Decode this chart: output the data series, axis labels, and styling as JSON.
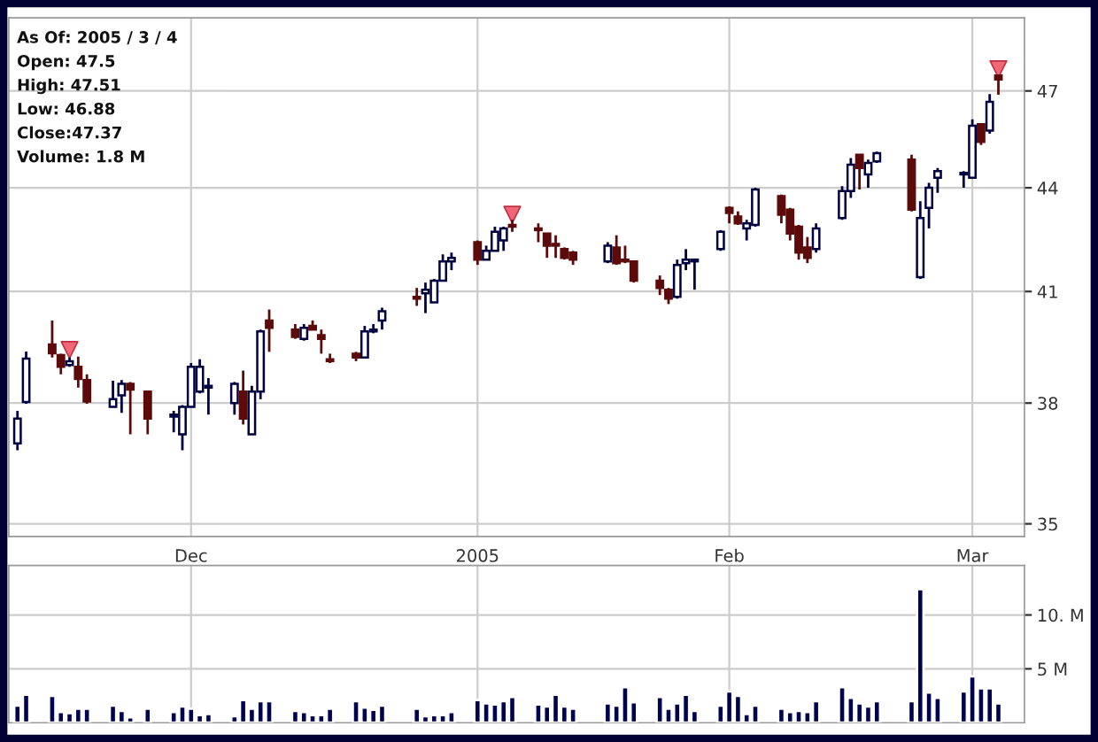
{
  "chart_data": [
    {
      "type": "candlestick",
      "annotations": [
        "As Of: 2005 / 3 / 4",
        "Open: 47.5",
        "High: 47.51",
        "Low: 46.88",
        "Close:47.37",
        "Volume: 1.8 M"
      ],
      "x": [
        "2004-11-11",
        "2004-11-12",
        "2004-11-15",
        "2004-11-16",
        "2004-11-17",
        "2004-11-18",
        "2004-11-19",
        "2004-11-22",
        "2004-11-23",
        "2004-11-24",
        "2004-11-26",
        "2004-11-29",
        "2004-11-30",
        "2004-12-01",
        "2004-12-02",
        "2004-12-03",
        "2004-12-06",
        "2004-12-07",
        "2004-12-08",
        "2004-12-09",
        "2004-12-10",
        "2004-12-13",
        "2004-12-14",
        "2004-12-15",
        "2004-12-16",
        "2004-12-17",
        "2004-12-20",
        "2004-12-21",
        "2004-12-22",
        "2004-12-23",
        "2004-12-27",
        "2004-12-28",
        "2004-12-29",
        "2004-12-30",
        "2004-12-31",
        "2005-01-03",
        "2005-01-04",
        "2005-01-05",
        "2005-01-06",
        "2005-01-07",
        "2005-01-10",
        "2005-01-11",
        "2005-01-12",
        "2005-01-13",
        "2005-01-14",
        "2005-01-18",
        "2005-01-19",
        "2005-01-20",
        "2005-01-21",
        "2005-01-24",
        "2005-01-25",
        "2005-01-26",
        "2005-01-27",
        "2005-01-28",
        "2005-01-31",
        "2005-02-01",
        "2005-02-02",
        "2005-02-03",
        "2005-02-04",
        "2005-02-07",
        "2005-02-08",
        "2005-02-09",
        "2005-02-10",
        "2005-02-11",
        "2005-02-14",
        "2005-02-15",
        "2005-02-16",
        "2005-02-17",
        "2005-02-18",
        "2005-02-22",
        "2005-02-23",
        "2005-02-24",
        "2005-02-25",
        "2005-02-28",
        "2005-03-01",
        "2005-03-02",
        "2005-03-03",
        "2005-03-04"
      ],
      "ohlc": [
        [
          36.97,
          37.8,
          36.8,
          37.6
        ],
        [
          38.03,
          39.36,
          37.98,
          39.17
        ],
        [
          39.55,
          40.2,
          39.2,
          39.31
        ],
        [
          39.26,
          39.3,
          38.75,
          38.95
        ],
        [
          39.0,
          39.2,
          38.95,
          39.1
        ],
        [
          38.95,
          39.22,
          38.4,
          38.63
        ],
        [
          38.6,
          38.75,
          37.98,
          38.04
        ],
        [
          37.9,
          38.58,
          37.9,
          38.1
        ],
        [
          38.2,
          38.6,
          37.75,
          38.5
        ],
        [
          38.5,
          38.55,
          37.2,
          38.35
        ],
        [
          38.3,
          38.3,
          37.2,
          37.6
        ],
        [
          37.65,
          37.8,
          37.25,
          37.7
        ],
        [
          37.2,
          37.95,
          36.8,
          37.9
        ],
        [
          37.9,
          39.05,
          37.9,
          38.95
        ],
        [
          38.3,
          39.15,
          38.25,
          38.95
        ],
        [
          38.4,
          38.65,
          37.7,
          38.45
        ],
        [
          38.0,
          38.55,
          37.7,
          38.5
        ],
        [
          38.3,
          38.85,
          37.45,
          37.6
        ],
        [
          37.2,
          38.45,
          37.2,
          38.3
        ],
        [
          38.3,
          39.95,
          38.1,
          39.9
        ],
        [
          40.2,
          40.5,
          39.35,
          40.0
        ],
        [
          39.95,
          40.1,
          39.7,
          39.75
        ],
        [
          39.7,
          40.1,
          39.65,
          40.0
        ],
        [
          40.05,
          40.2,
          39.95,
          39.95
        ],
        [
          39.8,
          39.95,
          39.3,
          39.7
        ],
        [
          39.15,
          39.3,
          39.05,
          39.1
        ],
        [
          39.3,
          39.35,
          39.1,
          39.2
        ],
        [
          39.2,
          40.05,
          39.2,
          39.9
        ],
        [
          39.9,
          40.1,
          39.85,
          39.95
        ],
        [
          40.2,
          40.55,
          39.95,
          40.45
        ],
        [
          40.85,
          41.1,
          40.6,
          40.8
        ],
        [
          40.95,
          41.25,
          40.4,
          41.05
        ],
        [
          40.7,
          41.35,
          40.7,
          41.3
        ],
        [
          41.3,
          42.05,
          41.3,
          41.85
        ],
        [
          41.85,
          42.1,
          41.6,
          41.95
        ],
        [
          42.4,
          42.45,
          41.75,
          41.9
        ],
        [
          41.9,
          42.3,
          41.9,
          42.15
        ],
        [
          42.15,
          42.85,
          42.15,
          42.7
        ],
        [
          42.45,
          42.85,
          42.15,
          42.8
        ],
        [
          42.9,
          43.05,
          42.7,
          42.85
        ],
        [
          42.8,
          42.95,
          42.4,
          42.75
        ],
        [
          42.65,
          42.65,
          41.95,
          42.3
        ],
        [
          42.35,
          42.6,
          41.95,
          42.3
        ],
        [
          42.2,
          42.25,
          41.9,
          41.95
        ],
        [
          42.1,
          42.15,
          41.75,
          41.9
        ],
        [
          41.85,
          42.4,
          41.8,
          42.3
        ],
        [
          42.25,
          42.6,
          41.75,
          41.8
        ],
        [
          41.9,
          42.3,
          41.8,
          41.85
        ],
        [
          41.85,
          41.85,
          41.25,
          41.3
        ],
        [
          41.3,
          41.45,
          40.9,
          41.1
        ],
        [
          41.05,
          41.1,
          40.65,
          40.8
        ],
        [
          40.85,
          41.9,
          40.8,
          41.75
        ],
        [
          41.8,
          42.2,
          41.6,
          41.9
        ],
        [
          41.85,
          41.9,
          41.05,
          41.9
        ],
        [
          42.2,
          42.75,
          42.15,
          42.7
        ],
        [
          43.4,
          43.45,
          42.95,
          43.25
        ],
        [
          43.15,
          43.3,
          42.9,
          42.95
        ],
        [
          42.8,
          43.05,
          42.45,
          42.95
        ],
        [
          42.9,
          44.0,
          42.85,
          43.95
        ],
        [
          43.75,
          43.8,
          42.95,
          43.2
        ],
        [
          43.35,
          43.4,
          42.45,
          42.65
        ],
        [
          42.85,
          42.9,
          41.9,
          42.1
        ],
        [
          42.25,
          42.55,
          41.8,
          41.95
        ],
        [
          42.2,
          42.95,
          42.1,
          42.8
        ],
        [
          43.1,
          44.05,
          43.05,
          43.9
        ],
        [
          43.9,
          44.9,
          43.7,
          44.7
        ],
        [
          45.0,
          45.0,
          43.95,
          44.6
        ],
        [
          44.4,
          44.85,
          44.0,
          44.75
        ],
        [
          44.8,
          45.1,
          44.75,
          45.05
        ],
        [
          44.85,
          45.0,
          43.3,
          43.35
        ],
        [
          41.4,
          43.6,
          41.35,
          43.1
        ],
        [
          43.4,
          44.15,
          42.8,
          44.0
        ],
        [
          44.3,
          44.6,
          43.85,
          44.5
        ],
        [
          44.4,
          44.5,
          44.0,
          44.45
        ],
        [
          44.3,
          46.1,
          44.3,
          45.9
        ],
        [
          45.95,
          45.95,
          45.3,
          45.4
        ],
        [
          45.75,
          46.9,
          45.65,
          46.65
        ],
        [
          47.5,
          47.51,
          46.88,
          47.37
        ]
      ],
      "colors": [
        "#000040",
        "#000040",
        "#5c0a0a",
        "#5c0a0a",
        "#000040",
        "#5c0a0a",
        "#5c0a0a",
        "#000040",
        "#000040",
        "#5c0a0a",
        "#5c0a0a",
        "#000040",
        "#000040",
        "#000040",
        "#000040",
        "#000040",
        "#000040",
        "#5c0a0a",
        "#000040",
        "#000040",
        "#5c0a0a",
        "#5c0a0a",
        "#000040",
        "#5c0a0a",
        "#5c0a0a",
        "#5c0a0a",
        "#5c0a0a",
        "#000040",
        "#000040",
        "#000040",
        "#5c0a0a",
        "#000040",
        "#000040",
        "#000040",
        "#000040",
        "#5c0a0a",
        "#000040",
        "#000040",
        "#000040",
        "#5c0a0a",
        "#5c0a0a",
        "#5c0a0a",
        "#5c0a0a",
        "#5c0a0a",
        "#5c0a0a",
        "#000040",
        "#5c0a0a",
        "#5c0a0a",
        "#5c0a0a",
        "#5c0a0a",
        "#5c0a0a",
        "#000040",
        "#000040",
        "#000040",
        "#000040",
        "#5c0a0a",
        "#5c0a0a",
        "#000040",
        "#000040",
        "#5c0a0a",
        "#5c0a0a",
        "#5c0a0a",
        "#5c0a0a",
        "#000040",
        "#000040",
        "#000040",
        "#5c0a0a",
        "#000040",
        "#000040",
        "#5c0a0a",
        "#000040",
        "#000040",
        "#000040",
        "#000040",
        "#000040",
        "#5c0a0a",
        "#000040",
        "#5c0a0a"
      ],
      "series": [
        {
          "type": "scatter",
          "marker": "triangle",
          "color": "#f06878",
          "x": [
            "2004-11-17",
            "2005-01-07",
            "2005-03-04"
          ],
          "values": [
            39.4,
            43.2,
            47.7
          ]
        }
      ],
      "log": true,
      "ylim": [
        34.7,
        49.4
      ],
      "yticks": [
        35,
        38,
        41,
        44,
        47
      ],
      "xlim": [
        "2004-11-10",
        "2005-03-07"
      ],
      "xticks": [
        {
          "value": "2004-12-01",
          "label": "Dec"
        },
        {
          "value": "2005-01-03",
          "label": "2005"
        },
        {
          "value": "2005-02-01",
          "label": "Feb"
        },
        {
          "value": "2005-03-01",
          "label": "Mar"
        }
      ],
      "grid": true
    },
    {
      "type": "bar",
      "color": "#000050",
      "tick_labels": "y",
      "x": [
        "2004-11-11",
        "2004-11-12",
        "2004-11-15",
        "2004-11-16",
        "2004-11-17",
        "2004-11-18",
        "2004-11-19",
        "2004-11-22",
        "2004-11-23",
        "2004-11-24",
        "2004-11-26",
        "2004-11-29",
        "2004-11-30",
        "2004-12-01",
        "2004-12-02",
        "2004-12-03",
        "2004-12-06",
        "2004-12-07",
        "2004-12-08",
        "2004-12-09",
        "2004-12-10",
        "2004-12-13",
        "2004-12-14",
        "2004-12-15",
        "2004-12-16",
        "2004-12-17",
        "2004-12-20",
        "2004-12-21",
        "2004-12-22",
        "2004-12-23",
        "2004-12-27",
        "2004-12-28",
        "2004-12-29",
        "2004-12-30",
        "2004-12-31",
        "2005-01-03",
        "2005-01-04",
        "2005-01-05",
        "2005-01-06",
        "2005-01-07",
        "2005-01-10",
        "2005-01-11",
        "2005-01-12",
        "2005-01-13",
        "2005-01-14",
        "2005-01-18",
        "2005-01-19",
        "2005-01-20",
        "2005-01-21",
        "2005-01-24",
        "2005-01-25",
        "2005-01-26",
        "2005-01-27",
        "2005-01-28",
        "2005-01-31",
        "2005-02-01",
        "2005-02-02",
        "2005-02-03",
        "2005-02-04",
        "2005-02-07",
        "2005-02-08",
        "2005-02-09",
        "2005-02-10",
        "2005-02-11",
        "2005-02-14",
        "2005-02-15",
        "2005-02-16",
        "2005-02-17",
        "2005-02-18",
        "2005-02-22",
        "2005-02-23",
        "2005-02-24",
        "2005-02-25",
        "2005-02-28",
        "2005-03-01",
        "2005-03-02",
        "2005-03-03",
        "2005-03-04"
      ],
      "values": [
        1.6,
        2.6,
        2.5,
        1.0,
        0.9,
        1.3,
        1.3,
        1.6,
        1.1,
        0.5,
        1.3,
        1.0,
        1.5,
        1.3,
        0.7,
        0.8,
        0.6,
        2.1,
        1.3,
        2.0,
        2.0,
        1.1,
        1.0,
        0.7,
        0.7,
        1.3,
        2.0,
        1.4,
        1.2,
        1.6,
        1.3,
        0.6,
        0.7,
        0.7,
        1.0,
        2.1,
        1.8,
        1.7,
        2.0,
        2.4,
        1.7,
        1.5,
        2.6,
        1.5,
        1.3,
        1.8,
        1.6,
        3.3,
        1.9,
        2.4,
        1.3,
        1.8,
        2.6,
        1.1,
        1.6,
        2.9,
        2.5,
        0.8,
        1.6,
        1.3,
        1.0,
        1.1,
        1.0,
        2.0,
        3.3,
        2.3,
        1.8,
        1.5,
        2.0,
        2.0,
        12.4,
        2.8,
        2.3,
        2.9,
        4.3,
        3.2,
        3.2,
        1.8
      ],
      "ylim": [
        0,
        14.6
      ],
      "yticks": [
        {
          "value": 5,
          "label": "5 M"
        },
        {
          "value": 10,
          "label": "10. M"
        }
      ],
      "xlim": [
        "2004-11-10",
        "2005-03-07"
      ],
      "xticks": [
        {
          "value": "2004-12-01",
          "label": null
        },
        {
          "value": "2005-01-03",
          "label": null
        },
        {
          "value": "2005-02-01",
          "label": null
        },
        {
          "value": "2005-03-01",
          "label": null
        }
      ],
      "grid": true
    }
  ]
}
